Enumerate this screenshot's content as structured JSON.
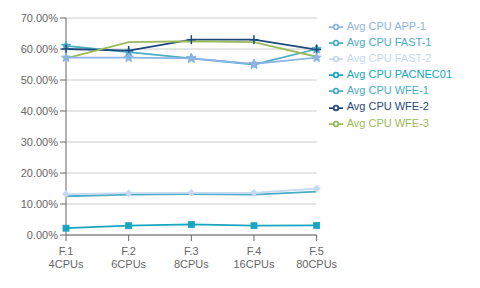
{
  "chart_data": {
    "type": "line",
    "categories": [
      "F.1\n4CPUs",
      "F.2\n6CPUs",
      "F.3\n8CPUs",
      "F.4\n16CPUs",
      "F.5\n80CPUs"
    ],
    "series": [
      {
        "name": "Avg CPU WFE-1",
        "values": [
          0.61,
          0.59,
          0.57,
          0.55,
          0.6
        ],
        "color": "#4BACC6",
        "marker": "star"
      },
      {
        "name": "Avg CPU WFE-2",
        "values": [
          0.6,
          0.595,
          0.63,
          0.63,
          0.598
        ],
        "color": "#1F497D",
        "marker": "plus"
      },
      {
        "name": "Avg CPU WFE-3",
        "values": [
          0.57,
          0.622,
          0.625,
          0.622,
          0.575
        ],
        "color": "#9BBB59",
        "marker": "none"
      },
      {
        "name": "Avg CPU APP-1",
        "values": [
          0.572,
          0.572,
          0.57,
          0.552,
          0.572
        ],
        "color": "#8EB4E3",
        "marker": "star"
      },
      {
        "name": "Avg CPU FAST-1",
        "values": [
          0.125,
          0.13,
          0.132,
          0.13,
          0.14
        ],
        "color": "#4BACC6",
        "marker": "none"
      },
      {
        "name": "Avg CPU FAST-2",
        "values": [
          0.132,
          0.135,
          0.136,
          0.136,
          0.15
        ],
        "color": "#C6D9F1",
        "marker": "diamond"
      },
      {
        "name": "Avg CPU PACNEC01",
        "values": [
          0.022,
          0.03,
          0.034,
          0.03,
          0.031
        ],
        "color": "#17A5C0",
        "marker": "square"
      }
    ],
    "ylim": [
      0.0,
      0.7
    ],
    "yticks": [
      {
        "value": 0.0,
        "label": "0.00%"
      },
      {
        "value": 0.1,
        "label": "10.00%"
      },
      {
        "value": 0.2,
        "label": "20.00%"
      },
      {
        "value": 0.3,
        "label": "30.00%"
      },
      {
        "value": 0.4,
        "label": "40.00%"
      },
      {
        "value": 0.5,
        "label": "50.00%"
      },
      {
        "value": 0.6,
        "label": "60.00%"
      },
      {
        "value": 0.7,
        "label": "70.00%"
      }
    ],
    "grid": true,
    "legend": "right"
  }
}
